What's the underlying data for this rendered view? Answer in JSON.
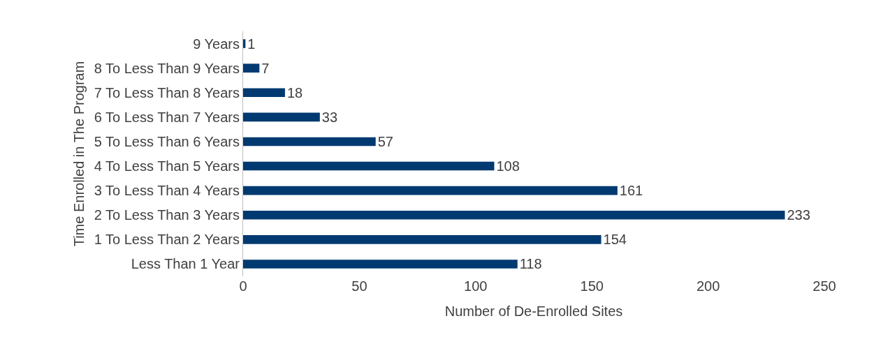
{
  "chart_data": {
    "type": "bar",
    "orientation": "horizontal",
    "categories": [
      "9 Years",
      "8 To Less Than 9 Years",
      "7 To Less Than 8 Years",
      "6 To Less Than 7 Years",
      "5 To Less Than 6 Years",
      "4 To Less Than 5 Years",
      "3 To Less Than 4 Years",
      "2 To Less Than 3 Years",
      "1 To Less Than 2 Years",
      "Less Than 1 Year"
    ],
    "values": [
      1,
      7,
      18,
      33,
      57,
      108,
      161,
      233,
      154,
      118
    ],
    "color": "#003a70",
    "xlim": [
      0,
      250
    ],
    "xticks": [
      0,
      50,
      100,
      150,
      200,
      250
    ],
    "xlabel": "Number of De-Enrolled Sites",
    "ylabel": "Time Enrolled in The Program",
    "data_labels": true
  }
}
